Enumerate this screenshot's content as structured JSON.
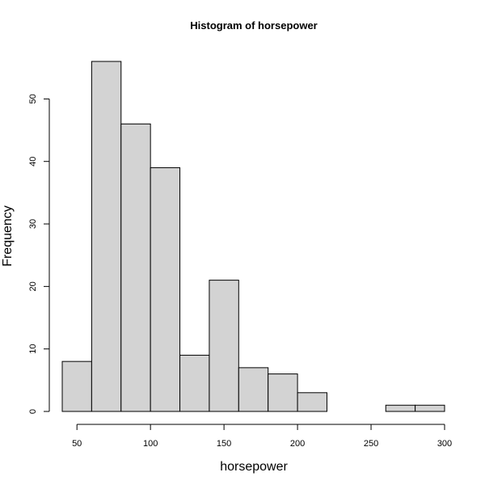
{
  "chart_data": {
    "type": "bar",
    "title": "Histogram of horsepower",
    "xlabel": "horsepower",
    "ylabel": "Frequency",
    "bar_color": "#d3d3d3",
    "bin_edges": [
      40,
      60,
      80,
      100,
      120,
      140,
      160,
      180,
      200,
      220,
      240,
      260,
      280,
      300
    ],
    "values": [
      8,
      56,
      46,
      39,
      9,
      21,
      7,
      6,
      3,
      0,
      0,
      1,
      1
    ],
    "x_ticks": [
      50,
      100,
      150,
      200,
      250,
      300
    ],
    "y_ticks": [
      0,
      10,
      20,
      30,
      40,
      50
    ],
    "xlim": [
      40,
      300
    ],
    "ylim": [
      0,
      56
    ],
    "grid": false,
    "legend": "none"
  }
}
